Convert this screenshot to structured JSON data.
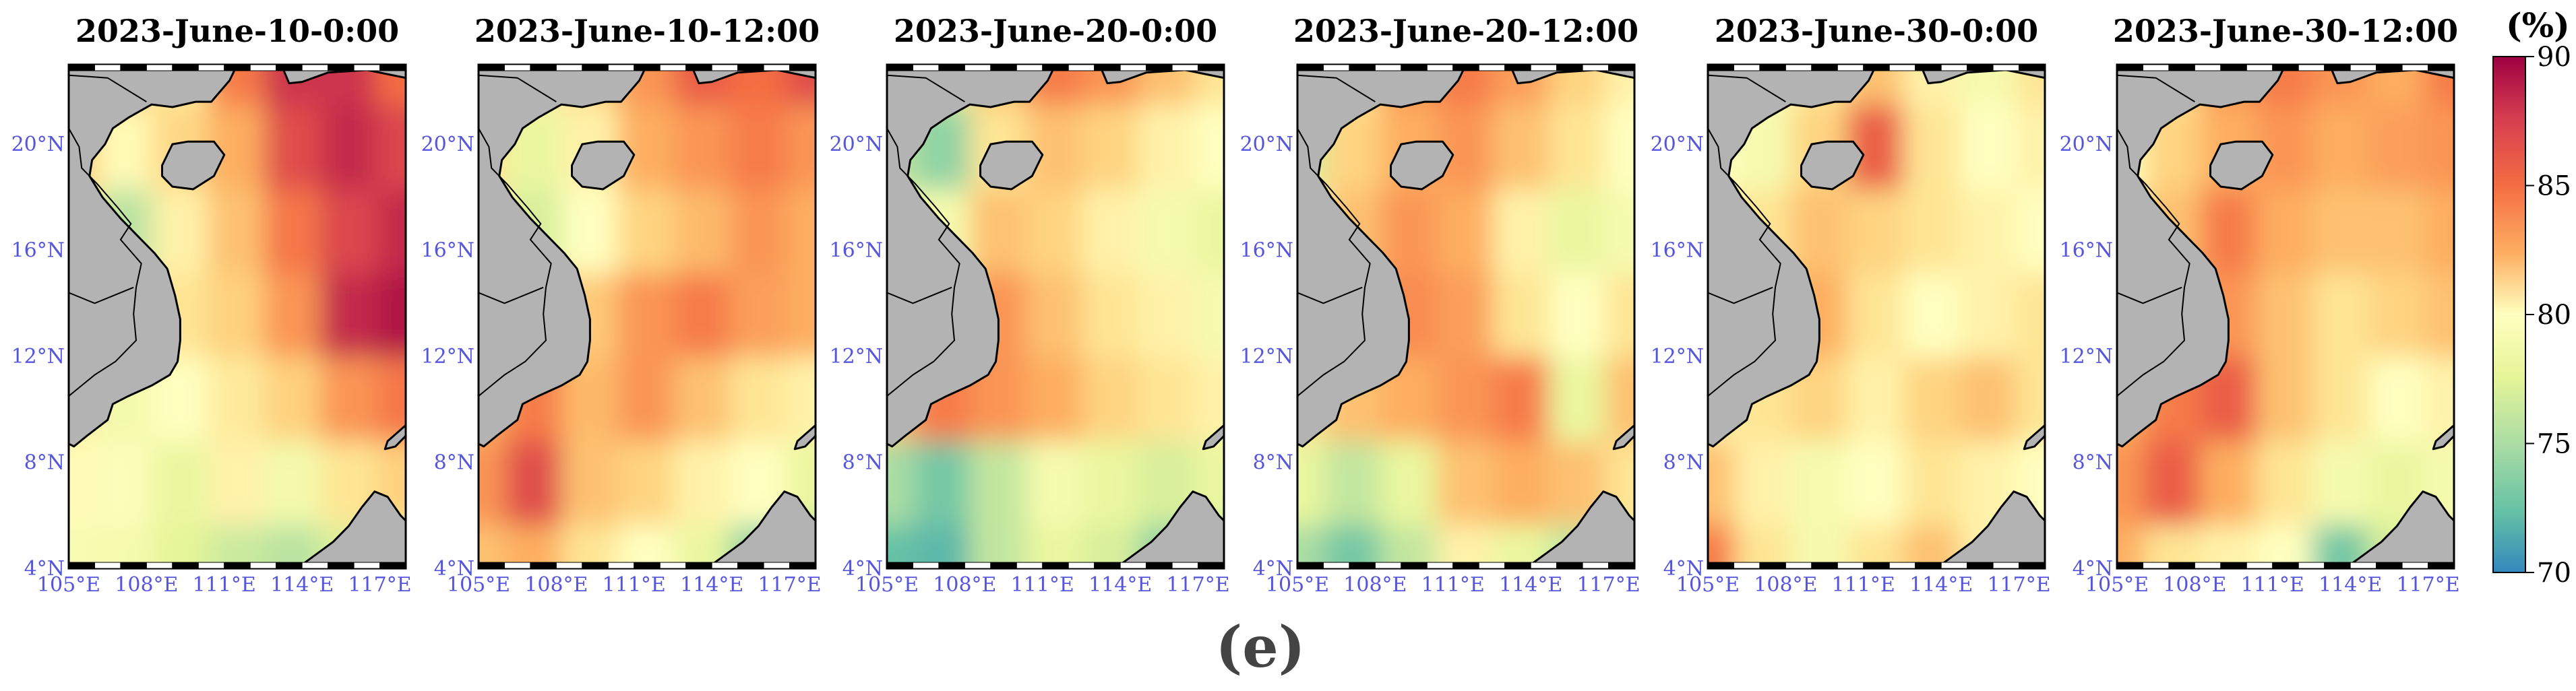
{
  "panels": [
    {
      "title": "2023-June-10-0:00",
      "field": [
        [
          0.8,
          0.68,
          0.58,
          0.85,
          0.95,
          0.95,
          0.88
        ],
        [
          0.68,
          0.52,
          0.64,
          0.75,
          0.92,
          0.96,
          0.93
        ],
        [
          0.62,
          0.28,
          0.55,
          0.7,
          0.86,
          0.93,
          0.96
        ],
        [
          0.5,
          0.55,
          0.6,
          0.66,
          0.8,
          0.96,
          0.98
        ],
        [
          0.55,
          0.44,
          0.5,
          0.58,
          0.66,
          0.8,
          0.86
        ],
        [
          0.52,
          0.48,
          0.4,
          0.55,
          0.44,
          0.6,
          0.66
        ],
        [
          0.46,
          0.45,
          0.38,
          0.32,
          0.28,
          0.36,
          0.4
        ]
      ]
    },
    {
      "title": "2023-June-10-12:00",
      "field": [
        [
          0.7,
          0.55,
          0.65,
          0.8,
          0.9,
          0.88,
          0.92
        ],
        [
          0.6,
          0.4,
          0.55,
          0.75,
          0.8,
          0.85,
          0.8
        ],
        [
          0.55,
          0.35,
          0.5,
          0.65,
          0.72,
          0.8,
          0.75
        ],
        [
          0.6,
          0.55,
          0.68,
          0.8,
          0.85,
          0.78,
          0.75
        ],
        [
          0.75,
          0.85,
          0.72,
          0.8,
          0.7,
          0.6,
          0.55
        ],
        [
          0.8,
          0.92,
          0.7,
          0.65,
          0.55,
          0.5,
          0.4
        ],
        [
          0.7,
          0.75,
          0.6,
          0.5,
          0.4,
          0.2,
          0.18
        ]
      ]
    },
    {
      "title": "2023-June-20-0:00",
      "field": [
        [
          0.5,
          0.4,
          0.7,
          0.85,
          0.8,
          0.7,
          0.6
        ],
        [
          0.3,
          0.2,
          0.6,
          0.7,
          0.65,
          0.55,
          0.5
        ],
        [
          0.4,
          0.45,
          0.7,
          0.65,
          0.55,
          0.45,
          0.4
        ],
        [
          0.55,
          0.7,
          0.8,
          0.7,
          0.6,
          0.55,
          0.45
        ],
        [
          0.7,
          0.85,
          0.8,
          0.75,
          0.65,
          0.6,
          0.55
        ],
        [
          0.25,
          0.15,
          0.3,
          0.45,
          0.4,
          0.35,
          0.4
        ],
        [
          0.12,
          0.1,
          0.3,
          0.4,
          0.35,
          0.2,
          0.25
        ]
      ]
    },
    {
      "title": "2023-June-20-12:00",
      "field": [
        [
          0.5,
          0.6,
          0.8,
          0.85,
          0.78,
          0.65,
          0.55
        ],
        [
          0.35,
          0.65,
          0.75,
          0.8,
          0.7,
          0.6,
          0.5
        ],
        [
          0.5,
          0.7,
          0.8,
          0.75,
          0.55,
          0.4,
          0.45
        ],
        [
          0.6,
          0.75,
          0.82,
          0.78,
          0.6,
          0.5,
          0.6
        ],
        [
          0.6,
          0.7,
          0.75,
          0.8,
          0.85,
          0.4,
          0.7
        ],
        [
          0.4,
          0.3,
          0.4,
          0.7,
          0.75,
          0.7,
          0.6
        ],
        [
          0.25,
          0.15,
          0.3,
          0.55,
          0.4,
          0.3,
          0.35
        ]
      ]
    },
    {
      "title": "2023-June-30-0:00",
      "field": [
        [
          0.6,
          0.5,
          0.6,
          0.7,
          0.55,
          0.45,
          0.6
        ],
        [
          0.5,
          0.45,
          0.65,
          0.9,
          0.6,
          0.5,
          0.55
        ],
        [
          0.55,
          0.6,
          0.7,
          0.65,
          0.6,
          0.55,
          0.5
        ],
        [
          0.6,
          0.7,
          0.75,
          0.6,
          0.5,
          0.55,
          0.6
        ],
        [
          0.55,
          0.6,
          0.65,
          0.55,
          0.65,
          0.7,
          0.6
        ],
        [
          0.7,
          0.55,
          0.45,
          0.5,
          0.6,
          0.55,
          0.5
        ],
        [
          0.85,
          0.6,
          0.45,
          0.6,
          0.7,
          0.55,
          0.5
        ]
      ]
    },
    {
      "title": "2023-June-30-12:00",
      "field": [
        [
          0.7,
          0.6,
          0.8,
          0.85,
          0.8,
          0.75,
          0.85
        ],
        [
          0.5,
          0.65,
          0.75,
          0.8,
          0.75,
          0.78,
          0.8
        ],
        [
          0.55,
          0.7,
          0.85,
          0.75,
          0.7,
          0.7,
          0.75
        ],
        [
          0.6,
          0.75,
          0.8,
          0.7,
          0.6,
          0.65,
          0.7
        ],
        [
          0.75,
          0.85,
          0.9,
          0.7,
          0.6,
          0.5,
          0.55
        ],
        [
          0.8,
          0.9,
          0.75,
          0.6,
          0.45,
          0.4,
          0.45
        ],
        [
          0.75,
          0.6,
          0.55,
          0.5,
          0.15,
          0.35,
          0.4
        ]
      ]
    }
  ],
  "map_extent": {
    "lon": [
      105,
      118
    ],
    "lat": [
      4,
      23
    ]
  },
  "lon_ticks": [
    "105°E",
    "108°E",
    "111°E",
    "114°E",
    "117°E"
  ],
  "lat_ticks": [
    "4°N",
    "8°N",
    "12°N",
    "16°N",
    "20°N"
  ],
  "colorbar": {
    "unit": "(%)",
    "min": 70,
    "max": 90,
    "ticks": [
      "90",
      "85",
      "80",
      "75",
      "70"
    ],
    "colormap": "Spectral_r"
  },
  "caption": "(e)",
  "colors": {
    "land": "#b3b3b3",
    "tick_label": "#5555dd",
    "caption": "#444444"
  }
}
